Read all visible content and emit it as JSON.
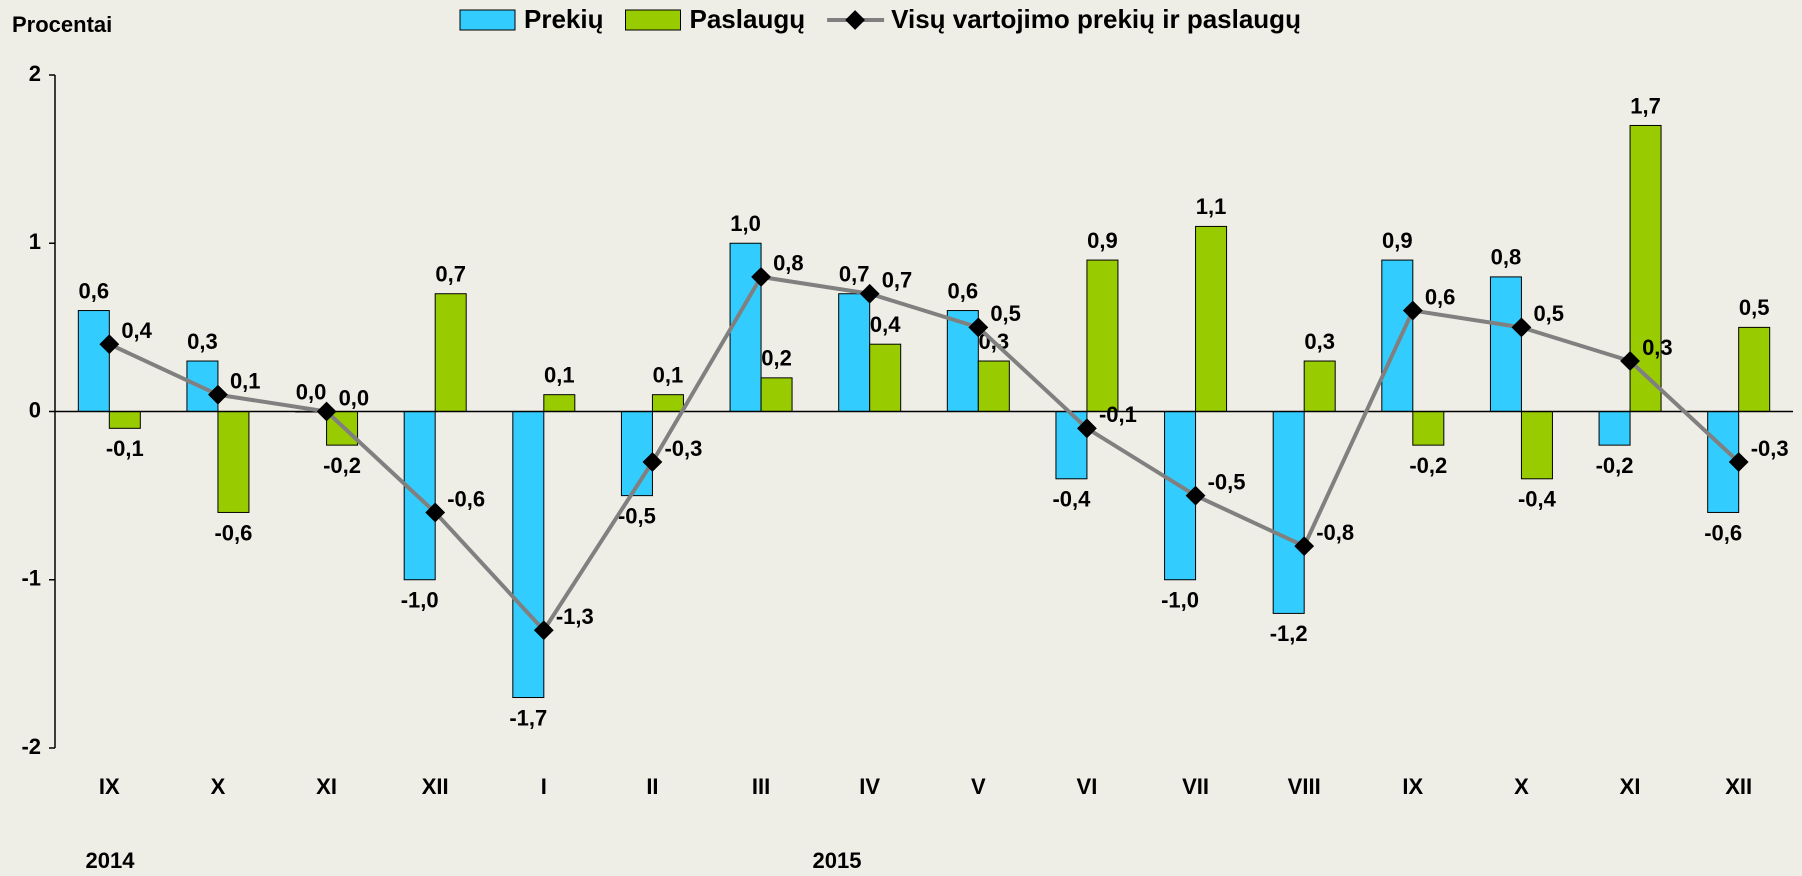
{
  "chart_data": {
    "type": "bar",
    "y_label": "Procentai",
    "categories": [
      "IX",
      "X",
      "XI",
      "XII",
      "I",
      "II",
      "III",
      "IV",
      "V",
      "VI",
      "VII",
      "VIII",
      "IX",
      "X",
      "XI",
      "XII"
    ],
    "years": [
      "2014",
      "2015"
    ],
    "series": [
      {
        "name": "Prekių",
        "type": "bar",
        "color": "#33ccff",
        "values": [
          0.6,
          0.3,
          0.0,
          -1.0,
          -1.7,
          -0.5,
          1.0,
          0.7,
          0.6,
          -0.4,
          -1.0,
          -1.2,
          0.9,
          0.8,
          -0.2,
          -0.6
        ],
        "value_labels": [
          "0,6",
          "0,3",
          "0,0",
          "-1,0",
          "-1,7",
          "-0,5",
          "1,0",
          "0,7",
          "0,6",
          "-0,4",
          "-1,0",
          "-1,2",
          "0,9",
          "0,8",
          "-0,2",
          "-0,6"
        ]
      },
      {
        "name": "Paslaugų",
        "type": "bar",
        "color": "#99cc00",
        "values": [
          -0.1,
          -0.6,
          -0.2,
          0.7,
          0.1,
          0.1,
          0.2,
          0.4,
          0.3,
          0.9,
          1.1,
          0.3,
          -0.2,
          -0.4,
          1.7,
          0.5
        ],
        "value_labels": [
          "-0,1",
          "-0,6",
          "-0,2",
          "0,7",
          "0,1",
          "0,1",
          "0,2",
          "0,4",
          "0,3",
          "0,9",
          "1,1",
          "0,3",
          "-0,2",
          "-0,4",
          "1,7",
          "0,5"
        ]
      },
      {
        "name": "Visų vartojimo prekių ir paslaugų",
        "type": "line",
        "color": "#808080",
        "marker_color": "#000000",
        "values": [
          0.4,
          0.1,
          0.0,
          -0.6,
          -1.3,
          -0.3,
          0.8,
          0.7,
          0.5,
          -0.1,
          -0.5,
          -0.8,
          0.6,
          0.5,
          0.3,
          -0.3
        ],
        "value_labels": [
          "0,4",
          "0,1",
          "0,0",
          "-0,6",
          "-1,3",
          "-0,3",
          "0,8",
          "0,7",
          "0,5",
          "-0,1",
          "-0,5",
          "-0,8",
          "0,6",
          "0,5",
          "0,3",
          "-0,3"
        ]
      }
    ],
    "ylim": [
      -2,
      2
    ],
    "yticks": [
      -2,
      -1,
      0,
      1,
      2
    ]
  }
}
